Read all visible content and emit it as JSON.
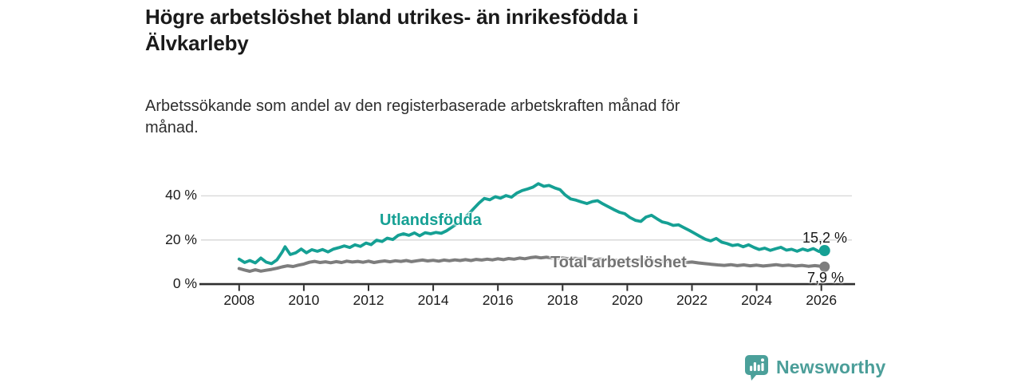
{
  "title_lines": [
    "Högre arbetslöshet bland utrikes- än inrikesfödda i",
    "Älvkarleby"
  ],
  "subtitle_lines": [
    "Arbetssökande som andel av den registerbaserade arbetskraften månad för",
    "månad."
  ],
  "branding": {
    "logo_text": "Newsworthy",
    "icon": "newsworthy-speech-bubble-bar-chart-icon",
    "color": "#4ba09a"
  },
  "chart_data": {
    "type": "line",
    "title": "Högre arbetslöshet bland utrikes- än inrikesfödda i Älvkarleby",
    "subtitle": "Arbetssökande som andel av den registerbaserade arbetskraften månad för månad.",
    "unit": "%",
    "legend": "inline-labels",
    "grid": "horizontal",
    "x_axis": {
      "ticks": [
        2008,
        2010,
        2012,
        2014,
        2016,
        2018,
        2020,
        2022,
        2024,
        2026
      ],
      "range": [
        2007.9,
        2027
      ]
    },
    "y_axis": {
      "ticks": [
        {
          "value": 0,
          "label": "0 %"
        },
        {
          "value": 20,
          "label": "20 %"
        },
        {
          "value": 40,
          "label": "40 %"
        }
      ],
      "range": [
        0,
        48
      ]
    },
    "series": [
      {
        "name": "Utlandsfödda",
        "color": "#15a094",
        "line_width": 3.8,
        "end_label": "15,2 %",
        "end_value": 15.2,
        "points": [
          [
            2008.0,
            11.3
          ],
          [
            2008.17,
            9.8
          ],
          [
            2008.33,
            10.7
          ],
          [
            2008.5,
            9.6
          ],
          [
            2008.67,
            11.8
          ],
          [
            2008.83,
            10.0
          ],
          [
            2009.0,
            9.3
          ],
          [
            2009.17,
            11.0
          ],
          [
            2009.33,
            14.5
          ],
          [
            2009.42,
            16.9
          ],
          [
            2009.58,
            13.4
          ],
          [
            2009.75,
            14.2
          ],
          [
            2009.92,
            15.9
          ],
          [
            2010.08,
            14.2
          ],
          [
            2010.25,
            15.6
          ],
          [
            2010.42,
            14.9
          ],
          [
            2010.58,
            15.7
          ],
          [
            2010.75,
            14.6
          ],
          [
            2010.92,
            15.9
          ],
          [
            2011.08,
            16.5
          ],
          [
            2011.25,
            17.3
          ],
          [
            2011.42,
            16.6
          ],
          [
            2011.58,
            17.8
          ],
          [
            2011.75,
            17.1
          ],
          [
            2011.92,
            18.6
          ],
          [
            2012.08,
            17.9
          ],
          [
            2012.25,
            19.9
          ],
          [
            2012.42,
            19.3
          ],
          [
            2012.58,
            20.8
          ],
          [
            2012.75,
            20.2
          ],
          [
            2012.92,
            22.1
          ],
          [
            2013.08,
            22.8
          ],
          [
            2013.25,
            22.1
          ],
          [
            2013.42,
            23.2
          ],
          [
            2013.58,
            21.9
          ],
          [
            2013.75,
            23.3
          ],
          [
            2013.92,
            22.8
          ],
          [
            2014.08,
            23.4
          ],
          [
            2014.25,
            23.0
          ],
          [
            2014.42,
            24.2
          ],
          [
            2014.58,
            25.8
          ],
          [
            2014.75,
            27.5
          ],
          [
            2014.92,
            29.3
          ],
          [
            2015.08,
            31.5
          ],
          [
            2015.25,
            34.2
          ],
          [
            2015.42,
            36.8
          ],
          [
            2015.58,
            38.8
          ],
          [
            2015.75,
            38.2
          ],
          [
            2015.92,
            39.6
          ],
          [
            2016.08,
            38.9
          ],
          [
            2016.25,
            40.1
          ],
          [
            2016.42,
            39.4
          ],
          [
            2016.58,
            41.2
          ],
          [
            2016.75,
            42.4
          ],
          [
            2016.92,
            43.1
          ],
          [
            2017.08,
            43.9
          ],
          [
            2017.25,
            45.5
          ],
          [
            2017.42,
            44.3
          ],
          [
            2017.58,
            44.7
          ],
          [
            2017.75,
            43.6
          ],
          [
            2017.92,
            42.8
          ],
          [
            2018.08,
            40.4
          ],
          [
            2018.25,
            38.6
          ],
          [
            2018.42,
            38.0
          ],
          [
            2018.58,
            37.2
          ],
          [
            2018.75,
            36.5
          ],
          [
            2018.92,
            37.4
          ],
          [
            2019.08,
            37.8
          ],
          [
            2019.25,
            36.3
          ],
          [
            2019.42,
            35.0
          ],
          [
            2019.58,
            33.8
          ],
          [
            2019.75,
            32.6
          ],
          [
            2019.92,
            31.9
          ],
          [
            2020.08,
            30.2
          ],
          [
            2020.25,
            28.9
          ],
          [
            2020.42,
            28.4
          ],
          [
            2020.58,
            30.4
          ],
          [
            2020.75,
            31.2
          ],
          [
            2020.92,
            29.6
          ],
          [
            2021.08,
            28.2
          ],
          [
            2021.25,
            27.6
          ],
          [
            2021.42,
            26.6
          ],
          [
            2021.58,
            26.9
          ],
          [
            2021.75,
            25.6
          ],
          [
            2021.92,
            24.3
          ],
          [
            2022.08,
            23.0
          ],
          [
            2022.25,
            21.6
          ],
          [
            2022.42,
            20.3
          ],
          [
            2022.58,
            19.6
          ],
          [
            2022.75,
            20.7
          ],
          [
            2022.92,
            19.0
          ],
          [
            2023.08,
            18.4
          ],
          [
            2023.25,
            17.5
          ],
          [
            2023.42,
            17.9
          ],
          [
            2023.58,
            16.9
          ],
          [
            2023.75,
            17.8
          ],
          [
            2023.92,
            16.6
          ],
          [
            2024.08,
            15.7
          ],
          [
            2024.25,
            16.3
          ],
          [
            2024.42,
            15.3
          ],
          [
            2024.58,
            16.0
          ],
          [
            2024.75,
            16.7
          ],
          [
            2024.92,
            15.4
          ],
          [
            2025.08,
            15.8
          ],
          [
            2025.25,
            14.9
          ],
          [
            2025.42,
            15.9
          ],
          [
            2025.58,
            15.2
          ],
          [
            2025.75,
            16.1
          ],
          [
            2025.92,
            14.8
          ],
          [
            2026.1,
            15.2
          ]
        ]
      },
      {
        "name": "Total arbetslöshet",
        "color": "#7d7d7d",
        "line_width": 4,
        "end_label": "7,9 %",
        "end_value": 7.9,
        "points": [
          [
            2008.0,
            7.1
          ],
          [
            2008.17,
            6.4
          ],
          [
            2008.33,
            5.8
          ],
          [
            2008.5,
            6.5
          ],
          [
            2008.67,
            5.9
          ],
          [
            2008.83,
            6.3
          ],
          [
            2009.0,
            6.7
          ],
          [
            2009.17,
            7.2
          ],
          [
            2009.33,
            7.8
          ],
          [
            2009.5,
            8.3
          ],
          [
            2009.67,
            8.0
          ],
          [
            2009.83,
            8.6
          ],
          [
            2010.0,
            9.1
          ],
          [
            2010.17,
            9.9
          ],
          [
            2010.33,
            10.3
          ],
          [
            2010.5,
            9.8
          ],
          [
            2010.67,
            10.1
          ],
          [
            2010.83,
            9.7
          ],
          [
            2011.0,
            10.2
          ],
          [
            2011.17,
            9.8
          ],
          [
            2011.33,
            10.4
          ],
          [
            2011.5,
            10.0
          ],
          [
            2011.67,
            10.3
          ],
          [
            2011.83,
            9.9
          ],
          [
            2012.0,
            10.4
          ],
          [
            2012.17,
            9.8
          ],
          [
            2012.33,
            10.2
          ],
          [
            2012.5,
            10.5
          ],
          [
            2012.67,
            10.1
          ],
          [
            2012.83,
            10.6
          ],
          [
            2013.0,
            10.3
          ],
          [
            2013.17,
            10.7
          ],
          [
            2013.33,
            10.2
          ],
          [
            2013.5,
            10.6
          ],
          [
            2013.67,
            10.9
          ],
          [
            2013.83,
            10.5
          ],
          [
            2014.0,
            10.8
          ],
          [
            2014.17,
            10.4
          ],
          [
            2014.33,
            10.9
          ],
          [
            2014.5,
            10.6
          ],
          [
            2014.67,
            11.0
          ],
          [
            2014.83,
            10.7
          ],
          [
            2015.0,
            11.1
          ],
          [
            2015.17,
            10.7
          ],
          [
            2015.33,
            11.2
          ],
          [
            2015.5,
            10.9
          ],
          [
            2015.67,
            11.3
          ],
          [
            2015.83,
            11.0
          ],
          [
            2016.0,
            11.5
          ],
          [
            2016.17,
            11.1
          ],
          [
            2016.33,
            11.6
          ],
          [
            2016.5,
            11.3
          ],
          [
            2016.67,
            11.8
          ],
          [
            2016.83,
            11.5
          ],
          [
            2017.0,
            12.0
          ],
          [
            2017.17,
            12.3
          ],
          [
            2017.33,
            11.9
          ],
          [
            2017.5,
            12.2
          ],
          [
            2017.67,
            11.8
          ],
          [
            2017.83,
            11.6
          ],
          [
            2018.0,
            11.9
          ],
          [
            2018.2,
            11.5
          ],
          [
            2018.4,
            11.7
          ],
          [
            2018.6,
            11.3
          ],
          [
            2018.8,
            11.6
          ],
          [
            2019.0,
            11.2
          ],
          [
            2019.2,
            11.4
          ],
          [
            2019.4,
            11.0
          ],
          [
            2019.6,
            10.7
          ],
          [
            2019.8,
            10.9
          ],
          [
            2020.0,
            10.5
          ],
          [
            2020.2,
            10.8
          ],
          [
            2020.4,
            11.0
          ],
          [
            2020.6,
            10.7
          ],
          [
            2020.8,
            10.4
          ],
          [
            2021.0,
            10.6
          ],
          [
            2021.2,
            10.2
          ],
          [
            2021.4,
            10.4
          ],
          [
            2021.6,
            10.0
          ],
          [
            2021.8,
            9.8
          ],
          [
            2022.0,
            10.0
          ],
          [
            2022.2,
            9.6
          ],
          [
            2022.4,
            9.3
          ],
          [
            2022.6,
            9.0
          ],
          [
            2022.8,
            8.7
          ],
          [
            2023.0,
            8.5
          ],
          [
            2023.2,
            8.8
          ],
          [
            2023.4,
            8.4
          ],
          [
            2023.6,
            8.7
          ],
          [
            2023.8,
            8.3
          ],
          [
            2024.0,
            8.6
          ],
          [
            2024.2,
            8.2
          ],
          [
            2024.4,
            8.5
          ],
          [
            2024.6,
            8.8
          ],
          [
            2024.8,
            8.4
          ],
          [
            2025.0,
            8.6
          ],
          [
            2025.2,
            8.2
          ],
          [
            2025.4,
            8.5
          ],
          [
            2025.6,
            8.1
          ],
          [
            2025.8,
            8.4
          ],
          [
            2026.1,
            7.9
          ]
        ]
      }
    ]
  }
}
